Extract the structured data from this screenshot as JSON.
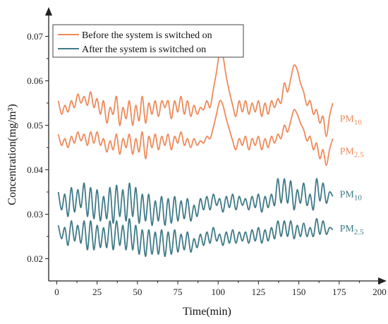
{
  "chart_data": {
    "type": "line",
    "xlabel": "Time(min)",
    "ylabel": "Concentration(mg/m³)",
    "xlim": [
      -5,
      200
    ],
    "ylim": [
      0.015,
      0.075
    ],
    "xticks": [
      0,
      25,
      50,
      75,
      100,
      125,
      150,
      175,
      200
    ],
    "yticks": [
      0.02,
      0.03,
      0.04,
      0.05,
      0.06,
      0.07
    ],
    "grid": false,
    "legend_position": "top-left",
    "legend": [
      {
        "label": "Before the system is switched on",
        "color": "#ef8a5a"
      },
      {
        "label": "After the system is switched on",
        "color": "#3f7a87"
      }
    ],
    "series": [
      {
        "group": "before",
        "tag_main": "PM",
        "tag_sub": "10",
        "color": "#ef8a5a",
        "x": [
          1,
          3,
          5,
          7,
          9,
          11,
          13,
          15,
          17,
          19,
          21,
          23,
          25,
          27,
          29,
          31,
          33,
          35,
          37,
          39,
          41,
          43,
          45,
          47,
          49,
          51,
          53,
          55,
          57,
          59,
          61,
          63,
          65,
          67,
          69,
          71,
          73,
          75,
          77,
          79,
          81,
          83,
          85,
          87,
          89,
          91,
          93,
          95,
          97,
          99,
          101,
          103,
          105,
          107,
          109,
          111,
          113,
          115,
          117,
          119,
          121,
          123,
          125,
          127,
          129,
          131,
          133,
          135,
          137,
          139,
          141,
          143,
          145,
          147,
          149,
          151,
          153,
          155,
          157,
          159,
          161,
          163,
          165,
          167,
          169,
          171
        ],
        "values": [
          0.0555,
          0.0525,
          0.0545,
          0.053,
          0.0555,
          0.054,
          0.057,
          0.055,
          0.0565,
          0.0545,
          0.0575,
          0.054,
          0.056,
          0.0525,
          0.0555,
          0.0505,
          0.054,
          0.0525,
          0.0565,
          0.05,
          0.054,
          0.0515,
          0.0555,
          0.05,
          0.0545,
          0.051,
          0.0565,
          0.0505,
          0.055,
          0.0525,
          0.0555,
          0.052,
          0.0555,
          0.054,
          0.0555,
          0.0515,
          0.0555,
          0.053,
          0.0565,
          0.0525,
          0.0555,
          0.052,
          0.0545,
          0.0525,
          0.054,
          0.0535,
          0.0555,
          0.054,
          0.058,
          0.062,
          0.0665,
          0.0655,
          0.061,
          0.0575,
          0.0545,
          0.052,
          0.0555,
          0.053,
          0.0555,
          0.0525,
          0.055,
          0.053,
          0.0555,
          0.052,
          0.055,
          0.0525,
          0.0555,
          0.054,
          0.056,
          0.055,
          0.0595,
          0.0575,
          0.0605,
          0.0635,
          0.0625,
          0.0595,
          0.0575,
          0.0545,
          0.0555,
          0.0525,
          0.0535,
          0.0505,
          0.052,
          0.0475,
          0.052,
          0.055
        ]
      },
      {
        "group": "before",
        "tag_main": "PM",
        "tag_sub": "2.5",
        "color": "#ef8a5a",
        "x": [
          1,
          3,
          5,
          7,
          9,
          11,
          13,
          15,
          17,
          19,
          21,
          23,
          25,
          27,
          29,
          31,
          33,
          35,
          37,
          39,
          41,
          43,
          45,
          47,
          49,
          51,
          53,
          55,
          57,
          59,
          61,
          63,
          65,
          67,
          69,
          71,
          73,
          75,
          77,
          79,
          81,
          83,
          85,
          87,
          89,
          91,
          93,
          95,
          97,
          99,
          101,
          103,
          105,
          107,
          109,
          111,
          113,
          115,
          117,
          119,
          121,
          123,
          125,
          127,
          129,
          131,
          133,
          135,
          137,
          139,
          141,
          143,
          145,
          147,
          149,
          151,
          153,
          155,
          157,
          159,
          161,
          163,
          165,
          167,
          169,
          171
        ],
        "values": [
          0.048,
          0.0455,
          0.047,
          0.045,
          0.0475,
          0.046,
          0.0485,
          0.0465,
          0.048,
          0.0455,
          0.0485,
          0.046,
          0.0485,
          0.0455,
          0.047,
          0.044,
          0.0465,
          0.0445,
          0.048,
          0.0435,
          0.047,
          0.045,
          0.048,
          0.0435,
          0.047,
          0.044,
          0.0485,
          0.0425,
          0.0475,
          0.045,
          0.048,
          0.0445,
          0.0475,
          0.0455,
          0.048,
          0.0445,
          0.0475,
          0.046,
          0.0485,
          0.0455,
          0.047,
          0.045,
          0.047,
          0.0455,
          0.0465,
          0.046,
          0.0475,
          0.047,
          0.0495,
          0.0525,
          0.0555,
          0.0545,
          0.0515,
          0.049,
          0.0465,
          0.0445,
          0.047,
          0.0455,
          0.0475,
          0.0445,
          0.047,
          0.0455,
          0.0475,
          0.0445,
          0.047,
          0.045,
          0.0475,
          0.046,
          0.048,
          0.047,
          0.05,
          0.0485,
          0.051,
          0.0535,
          0.0525,
          0.0505,
          0.049,
          0.0465,
          0.0475,
          0.0445,
          0.046,
          0.0425,
          0.0445,
          0.041,
          0.0445,
          0.047
        ]
      },
      {
        "group": "after",
        "tag_main": "PM",
        "tag_sub": "10",
        "color": "#3f7a87",
        "x": [
          1,
          3,
          5,
          7,
          9,
          11,
          13,
          15,
          17,
          19,
          21,
          23,
          25,
          27,
          29,
          31,
          33,
          35,
          37,
          39,
          41,
          43,
          45,
          47,
          49,
          51,
          53,
          55,
          57,
          59,
          61,
          63,
          65,
          67,
          69,
          71,
          73,
          75,
          77,
          79,
          81,
          83,
          85,
          87,
          89,
          91,
          93,
          95,
          97,
          99,
          101,
          103,
          105,
          107,
          109,
          111,
          113,
          115,
          117,
          119,
          121,
          123,
          125,
          127,
          129,
          131,
          133,
          135,
          137,
          139,
          141,
          143,
          145,
          147,
          149,
          151,
          153,
          155,
          157,
          159,
          161,
          163,
          165,
          167,
          169,
          171
        ],
        "values": [
          0.035,
          0.031,
          0.0345,
          0.0295,
          0.036,
          0.0305,
          0.0355,
          0.0315,
          0.037,
          0.0295,
          0.036,
          0.029,
          0.0355,
          0.0285,
          0.034,
          0.029,
          0.036,
          0.028,
          0.0365,
          0.0295,
          0.0355,
          0.0285,
          0.037,
          0.0295,
          0.036,
          0.028,
          0.0345,
          0.0285,
          0.0345,
          0.0275,
          0.033,
          0.0285,
          0.034,
          0.0275,
          0.0335,
          0.028,
          0.034,
          0.0285,
          0.033,
          0.029,
          0.0335,
          0.0285,
          0.032,
          0.0295,
          0.0335,
          0.031,
          0.034,
          0.031,
          0.0345,
          0.032,
          0.0335,
          0.0305,
          0.034,
          0.0315,
          0.0345,
          0.031,
          0.034,
          0.032,
          0.0335,
          0.031,
          0.034,
          0.0315,
          0.0345,
          0.0305,
          0.034,
          0.0315,
          0.0345,
          0.032,
          0.038,
          0.0325,
          0.038,
          0.0325,
          0.0375,
          0.031,
          0.0355,
          0.0325,
          0.037,
          0.032,
          0.0345,
          0.031,
          0.038,
          0.033,
          0.037,
          0.0325,
          0.035,
          0.034
        ]
      },
      {
        "group": "after",
        "tag_main": "PM",
        "tag_sub": "2.5",
        "color": "#3f7a87",
        "x": [
          1,
          3,
          5,
          7,
          9,
          11,
          13,
          15,
          17,
          19,
          21,
          23,
          25,
          27,
          29,
          31,
          33,
          35,
          37,
          39,
          41,
          43,
          45,
          47,
          49,
          51,
          53,
          55,
          57,
          59,
          61,
          63,
          65,
          67,
          69,
          71,
          73,
          75,
          77,
          79,
          81,
          83,
          85,
          87,
          89,
          91,
          93,
          95,
          97,
          99,
          101,
          103,
          105,
          107,
          109,
          111,
          113,
          115,
          117,
          119,
          121,
          123,
          125,
          127,
          129,
          131,
          133,
          135,
          137,
          139,
          141,
          143,
          145,
          147,
          149,
          151,
          153,
          155,
          157,
          159,
          161,
          163,
          165,
          167,
          169,
          171
        ],
        "values": [
          0.0275,
          0.0245,
          0.027,
          0.023,
          0.0285,
          0.024,
          0.0275,
          0.0235,
          0.0285,
          0.022,
          0.0285,
          0.022,
          0.0275,
          0.0225,
          0.027,
          0.0225,
          0.0285,
          0.022,
          0.0285,
          0.023,
          0.0275,
          0.022,
          0.029,
          0.022,
          0.0275,
          0.021,
          0.0265,
          0.0205,
          0.0265,
          0.021,
          0.026,
          0.021,
          0.0265,
          0.0205,
          0.026,
          0.021,
          0.0265,
          0.0215,
          0.0255,
          0.022,
          0.026,
          0.0215,
          0.0245,
          0.0225,
          0.0255,
          0.023,
          0.026,
          0.0235,
          0.027,
          0.024,
          0.0255,
          0.023,
          0.026,
          0.0235,
          0.0265,
          0.0235,
          0.026,
          0.024,
          0.026,
          0.0235,
          0.0265,
          0.024,
          0.027,
          0.0235,
          0.0265,
          0.024,
          0.027,
          0.0245,
          0.0285,
          0.025,
          0.0285,
          0.025,
          0.0285,
          0.0245,
          0.0275,
          0.025,
          0.028,
          0.025,
          0.027,
          0.025,
          0.029,
          0.0255,
          0.0285,
          0.0255,
          0.027,
          0.0265
        ]
      }
    ]
  }
}
